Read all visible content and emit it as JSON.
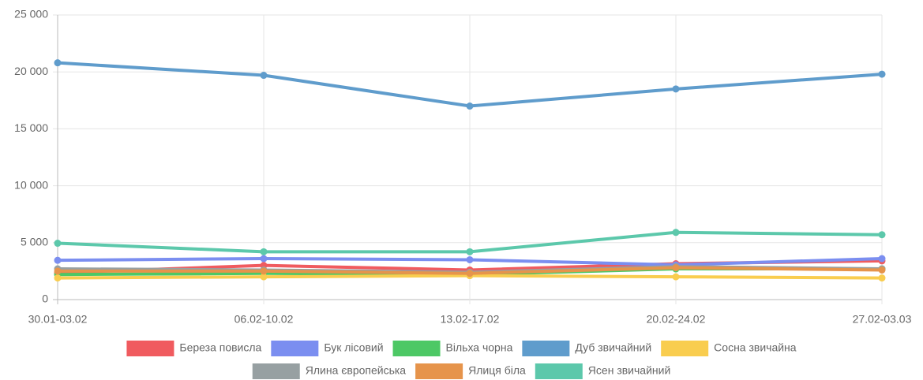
{
  "chart_data": {
    "type": "line",
    "categories": [
      "30.01-03.02",
      "06.02-10.02",
      "13.02-17.02",
      "20.02-24.02",
      "27.02-03.03"
    ],
    "series": [
      {
        "name": "Береза повисла",
        "color": "#f05b5f",
        "values": [
          2350,
          3000,
          2600,
          3150,
          3400
        ]
      },
      {
        "name": "Бук лісовий",
        "color": "#7b8ef0",
        "values": [
          3450,
          3600,
          3500,
          3050,
          3600
        ]
      },
      {
        "name": "Вільха чорна",
        "color": "#4dc865",
        "values": [
          2200,
          2300,
          2200,
          2700,
          2700
        ]
      },
      {
        "name": "Дуб звичайний",
        "color": "#5f9ccc",
        "values": [
          20800,
          19700,
          17000,
          18500,
          19800
        ]
      },
      {
        "name": "Сосна звичайна",
        "color": "#f9cd4f",
        "values": [
          1900,
          2000,
          2100,
          2000,
          1900
        ]
      },
      {
        "name": "Ялина європейська",
        "color": "#97a0a2",
        "values": [
          2700,
          2600,
          2400,
          2900,
          2700
        ]
      },
      {
        "name": "Ялиця біла",
        "color": "#e6944b",
        "values": [
          2500,
          2500,
          2300,
          2800,
          2600
        ]
      },
      {
        "name": "Ясен звичайний",
        "color": "#5cc8ab",
        "values": [
          4950,
          4200,
          4200,
          5900,
          5700
        ]
      }
    ],
    "ylim": [
      0,
      25000
    ],
    "yticks": [
      0,
      {
        "value": 5000,
        "label": "5 000"
      },
      {
        "value": 10000,
        "label": "10 000"
      },
      {
        "value": 15000,
        "label": "15 000"
      },
      {
        "value": 20000,
        "label": "20 000"
      },
      {
        "value": 25000,
        "label": "25 000"
      }
    ],
    "grid": true
  }
}
